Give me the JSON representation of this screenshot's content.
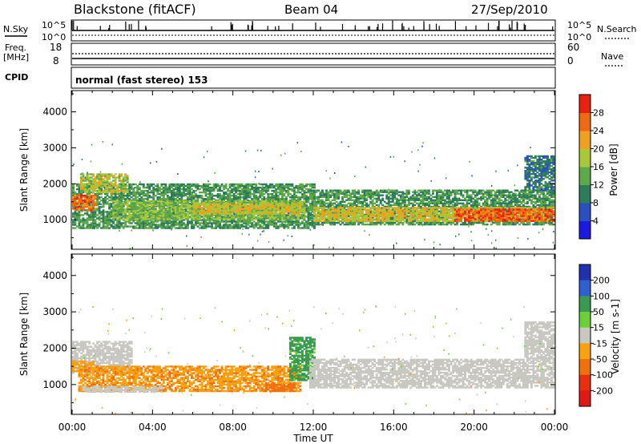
{
  "header": {
    "station": "Blackstone (fitACF)",
    "beam": "Beam 04",
    "date": "27/Sep/2010"
  },
  "strip": {
    "nsky_label": "N.Sky",
    "nsearch_label": "N.Search",
    "nsky_ticks": [
      "10^5",
      "10^0"
    ],
    "nsearch_ticks": [
      "10^5",
      "10^0"
    ],
    "freq_label": "Freq.",
    "freq_unit": "[MHz]",
    "freq_ticks": [
      "18",
      "8"
    ],
    "nave_label": "Nave",
    "nave_ticks": [
      "60",
      "0"
    ],
    "cpid_label": "CPID",
    "cpid_text": "normal (fast stereo) 153"
  },
  "chart_data": [
    {
      "type": "heatmap",
      "name": "power",
      "ylabel": "Slant Range [km]",
      "xlabel": "",
      "ylim": [
        180,
        4590
      ],
      "xlim": [
        0,
        24
      ],
      "yticks": [
        "1000",
        "2000",
        "3000",
        "4000"
      ],
      "colorbar_label": "Power [dB]",
      "colorbar_ticks": [
        "4",
        "8",
        "12",
        "16",
        "20",
        "24",
        "28"
      ],
      "colorbar_colors": [
        "#1a1ae0",
        "#2a50c0",
        "#2d7d5a",
        "#5fa84a",
        "#a8c83a",
        "#f0a020",
        "#ee6a10",
        "#e82010"
      ],
      "regions": [
        {
          "t0": 0.0,
          "t1": 12.0,
          "r0": 750,
          "r1": 2000,
          "level": 12
        },
        {
          "t0": 0.0,
          "t1": 1.2,
          "r0": 1250,
          "r1": 1700,
          "level": 26
        },
        {
          "t0": 0.4,
          "t1": 2.8,
          "r0": 1750,
          "r1": 2250,
          "level": 18
        },
        {
          "t0": 2.0,
          "t1": 11.5,
          "r0": 1000,
          "r1": 1500,
          "level": 16
        },
        {
          "t0": 6.0,
          "t1": 11.3,
          "r0": 1150,
          "r1": 1450,
          "level": 20
        },
        {
          "t0": 11.8,
          "t1": 24.0,
          "r0": 850,
          "r1": 1800,
          "level": 12
        },
        {
          "t0": 12.0,
          "t1": 24.0,
          "r0": 950,
          "r1": 1350,
          "level": 20
        },
        {
          "t0": 19.0,
          "t1": 24.0,
          "r0": 950,
          "r1": 1300,
          "level": 27
        },
        {
          "t0": 22.5,
          "t1": 24.0,
          "r0": 1800,
          "r1": 2750,
          "level": 9
        }
      ]
    },
    {
      "type": "heatmap",
      "name": "velocity",
      "ylabel": "Slant Range [km]",
      "xlabel": "Time UT",
      "ylim": [
        180,
        4590
      ],
      "xlim": [
        0,
        24
      ],
      "yticks": [
        "1000",
        "2000",
        "3000",
        "4000"
      ],
      "xticks": [
        "00:00",
        "04:00",
        "08:00",
        "12:00",
        "16:00",
        "20:00",
        "00:00"
      ],
      "colorbar_label": "Velocity [m s-1]",
      "colorbar_ticks": [
        "200",
        "100",
        "50",
        "15",
        "-15",
        "-50",
        "-100",
        "-200"
      ],
      "colorbar_colors": [
        "#2030b0",
        "#3060d0",
        "#3a9a50",
        "#6cd03a",
        "#c8c8c0",
        "#f8a010",
        "#f07010",
        "#e83010",
        "#e01818"
      ],
      "regions": [
        {
          "t0": 0.0,
          "t1": 3.0,
          "r0": 1300,
          "r1": 2200,
          "level": 0
        },
        {
          "t0": 0.0,
          "t1": 1.0,
          "r0": 1350,
          "r1": 1650,
          "level": -20
        },
        {
          "t0": 0.3,
          "t1": 11.3,
          "r0": 800,
          "r1": 1500,
          "level": -30
        },
        {
          "t0": 0.5,
          "t1": 4.5,
          "r0": 780,
          "r1": 960,
          "level": 0
        },
        {
          "t0": 9.5,
          "t1": 11.0,
          "r0": 800,
          "r1": 1000,
          "level": -40
        },
        {
          "t0": 10.8,
          "t1": 12.0,
          "r0": 1100,
          "r1": 2300,
          "level": 35
        },
        {
          "t0": 11.8,
          "t1": 24.0,
          "r0": 900,
          "r1": 1700,
          "level": 0
        },
        {
          "t0": 22.5,
          "t1": 24.0,
          "r0": 1700,
          "r1": 2700,
          "level": 0
        }
      ]
    }
  ]
}
